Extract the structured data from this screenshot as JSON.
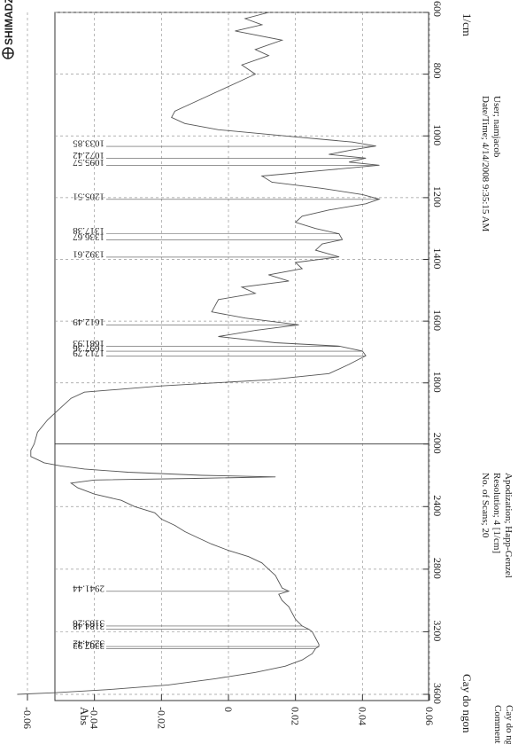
{
  "brand": {
    "name": "SHIMADZU"
  },
  "chart_data": {
    "type": "line",
    "x_label": "1/cm",
    "y_label": "Abs",
    "x_range": [
      3600,
      600
    ],
    "x_ticks": [
      600,
      800,
      1000,
      1200,
      1400,
      1600,
      1800,
      2000,
      2400,
      2800,
      3200,
      3600
    ],
    "x_tick_labels": [
      "600",
      "800",
      "1000",
      "1200",
      "1400",
      "1600",
      "1800",
      "2000",
      "2400",
      "2800",
      "3200",
      "3600"
    ],
    "y_range": [
      -0.065,
      0.065
    ],
    "y_ticks": [
      0.06,
      0.04,
      0.02,
      0,
      -0.02,
      -0.04,
      -0.06
    ],
    "y_tick_labels": [
      "0.06",
      "0.04",
      "0.02",
      "0",
      "-0.02",
      "-0.04",
      "-0.06"
    ],
    "grid": true,
    "orientation": "rotated",
    "series": [
      {
        "name": "Cay do ngon",
        "points": [
          [
            600,
            0.012
          ],
          [
            620,
            0.005
          ],
          [
            640,
            0.01
          ],
          [
            660,
            0.002
          ],
          [
            690,
            0.016
          ],
          [
            720,
            0.008
          ],
          [
            740,
            0.012
          ],
          [
            770,
            0.004
          ],
          [
            800,
            0.008
          ],
          [
            830,
            0.002
          ],
          [
            860,
            -0.004
          ],
          [
            880,
            -0.008
          ],
          [
            900,
            -0.012
          ],
          [
            920,
            -0.016
          ],
          [
            940,
            -0.017
          ],
          [
            960,
            -0.013
          ],
          [
            980,
            -0.003
          ],
          [
            1000,
            0.017
          ],
          [
            1020,
            0.037
          ],
          [
            1033,
            0.044
          ],
          [
            1045,
            0.037
          ],
          [
            1060,
            0.03
          ],
          [
            1072,
            0.041
          ],
          [
            1085,
            0.036
          ],
          [
            1095,
            0.045
          ],
          [
            1110,
            0.03
          ],
          [
            1130,
            0.01
          ],
          [
            1150,
            0.013
          ],
          [
            1170,
            0.028
          ],
          [
            1190,
            0.04
          ],
          [
            1205,
            0.045
          ],
          [
            1220,
            0.041
          ],
          [
            1240,
            0.03
          ],
          [
            1260,
            0.022
          ],
          [
            1280,
            0.02
          ],
          [
            1300,
            0.026
          ],
          [
            1317,
            0.033
          ],
          [
            1336,
            0.034
          ],
          [
            1350,
            0.028
          ],
          [
            1370,
            0.026
          ],
          [
            1392,
            0.033
          ],
          [
            1410,
            0.02
          ],
          [
            1430,
            0.022
          ],
          [
            1450,
            0.012
          ],
          [
            1470,
            0.018
          ],
          [
            1490,
            0.004
          ],
          [
            1510,
            0.008
          ],
          [
            1530,
            -0.003
          ],
          [
            1550,
            -0.004
          ],
          [
            1570,
            -0.005
          ],
          [
            1590,
            0.005
          ],
          [
            1612,
            0.021
          ],
          [
            1630,
            0.008
          ],
          [
            1650,
            -0.003
          ],
          [
            1670,
            0.014
          ],
          [
            1681,
            0.033
          ],
          [
            1697,
            0.04
          ],
          [
            1712,
            0.041
          ],
          [
            1740,
            0.036
          ],
          [
            1770,
            0.03
          ],
          [
            1790,
            0.012
          ],
          [
            1810,
            -0.02
          ],
          [
            1830,
            -0.043
          ],
          [
            1850,
            -0.047
          ],
          [
            1880,
            -0.05
          ],
          [
            1920,
            -0.054
          ],
          [
            1960,
            -0.057
          ],
          [
            2000,
            -0.058
          ],
          [
            2040,
            -0.059
          ],
          [
            2080,
            -0.059
          ],
          [
            2100,
            -0.057
          ],
          [
            2120,
            -0.055
          ],
          [
            2140,
            -0.05
          ],
          [
            2160,
            -0.043
          ],
          [
            2180,
            -0.03
          ],
          [
            2200,
            -0.008
          ],
          [
            2210,
            0.014
          ],
          [
            2220,
            -0.01
          ],
          [
            2230,
            -0.04
          ],
          [
            2250,
            -0.047
          ],
          [
            2280,
            -0.045
          ],
          [
            2320,
            -0.04
          ],
          [
            2360,
            -0.032
          ],
          [
            2400,
            -0.028
          ],
          [
            2440,
            -0.022
          ],
          [
            2480,
            -0.02
          ],
          [
            2520,
            -0.016
          ],
          [
            2560,
            -0.013
          ],
          [
            2600,
            -0.009
          ],
          [
            2640,
            -0.005
          ],
          [
            2680,
            0
          ],
          [
            2720,
            0.006
          ],
          [
            2760,
            0.01
          ],
          [
            2800,
            0.012
          ],
          [
            2840,
            0.014
          ],
          [
            2880,
            0.015
          ],
          [
            2920,
            0.016
          ],
          [
            2941,
            0.018
          ],
          [
            2960,
            0.015
          ],
          [
            3000,
            0.016
          ],
          [
            3040,
            0.018
          ],
          [
            3080,
            0.019
          ],
          [
            3120,
            0.02
          ],
          [
            3163,
            0.022
          ],
          [
            3184,
            0.024
          ],
          [
            3200,
            0.025
          ],
          [
            3240,
            0.026
          ],
          [
            3280,
            0.027
          ],
          [
            3294,
            0.027
          ],
          [
            3307,
            0.026
          ],
          [
            3340,
            0.025
          ],
          [
            3380,
            0.022
          ],
          [
            3420,
            0.017
          ],
          [
            3460,
            0.008
          ],
          [
            3500,
            -0.004
          ],
          [
            3540,
            -0.018
          ],
          [
            3570,
            -0.036
          ],
          [
            3590,
            -0.052
          ],
          [
            3600,
            -0.063
          ]
        ]
      }
    ],
    "peak_labels": [
      {
        "x": 1033.85,
        "label": "1033.85"
      },
      {
        "x": 1072.42,
        "label": "1072.42"
      },
      {
        "x": 1095.57,
        "label": "1095.57"
      },
      {
        "x": 1205.51,
        "label": "1205.51"
      },
      {
        "x": 1317.38,
        "label": "1317.38"
      },
      {
        "x": 1336.67,
        "label": "1336.67"
      },
      {
        "x": 1392.61,
        "label": "1392.61"
      },
      {
        "x": 1612.49,
        "label": "1612.49"
      },
      {
        "x": 1681.93,
        "label": "1681.93"
      },
      {
        "x": 1697.36,
        "label": "1697.36"
      },
      {
        "x": 1712.79,
        "label": "1712.79"
      },
      {
        "x": 2941.44,
        "label": "2941.44"
      },
      {
        "x": 3163.26,
        "label": "3163.26"
      },
      {
        "x": 3184.48,
        "label": "3184.48"
      },
      {
        "x": 3294.42,
        "label": "3294.42"
      },
      {
        "x": 3307.92,
        "label": "3307.92"
      }
    ]
  },
  "sample": {
    "name": "Cay do ngon"
  },
  "info": {
    "comment_label": "Comment;",
    "comment_value": "Cay do ngon",
    "scans": "No. of Scans; 20",
    "resolution": "Resolution;   4 [1/cm]",
    "apodization": "Apodization;   Happ-Genzel",
    "datetime": "Date/Time; 4/14/2008 9:35:15 AM",
    "user": "User;         namjacob"
  },
  "colors": {
    "line": "#555555",
    "frame": "#333333",
    "grid": "#999999",
    "text": "#222222"
  }
}
